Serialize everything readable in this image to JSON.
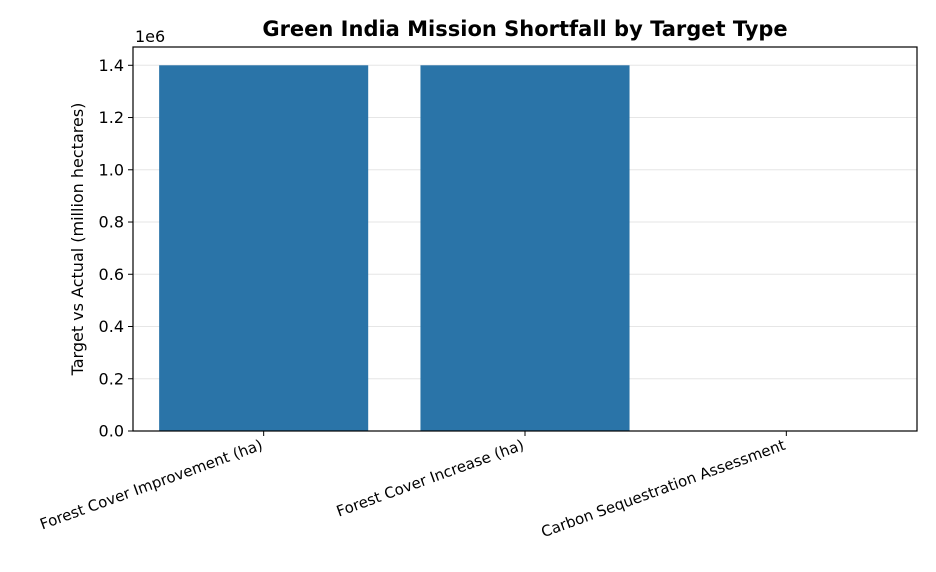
{
  "chart_data": {
    "type": "bar",
    "title": "Green India Mission Shortfall by Target Type",
    "xlabel": "",
    "ylabel": "Target vs Actual (million hectares)",
    "offset_label": "1e6",
    "categories": [
      "Forest Cover Improvement (ha)",
      "Forest Cover Increase (ha)",
      "Carbon Sequestration Assessment"
    ],
    "values": [
      1400000,
      1400000,
      0
    ],
    "ylim": [
      0,
      1470000
    ],
    "yticks": [
      0,
      200000,
      400000,
      600000,
      800000,
      1000000,
      1200000,
      1400000
    ],
    "ytick_labels": [
      "0.0",
      "0.2",
      "0.4",
      "0.6",
      "0.8",
      "1.0",
      "1.2",
      "1.4"
    ],
    "grid": "y",
    "legend": "none",
    "bar_color": "#2a74a8"
  }
}
